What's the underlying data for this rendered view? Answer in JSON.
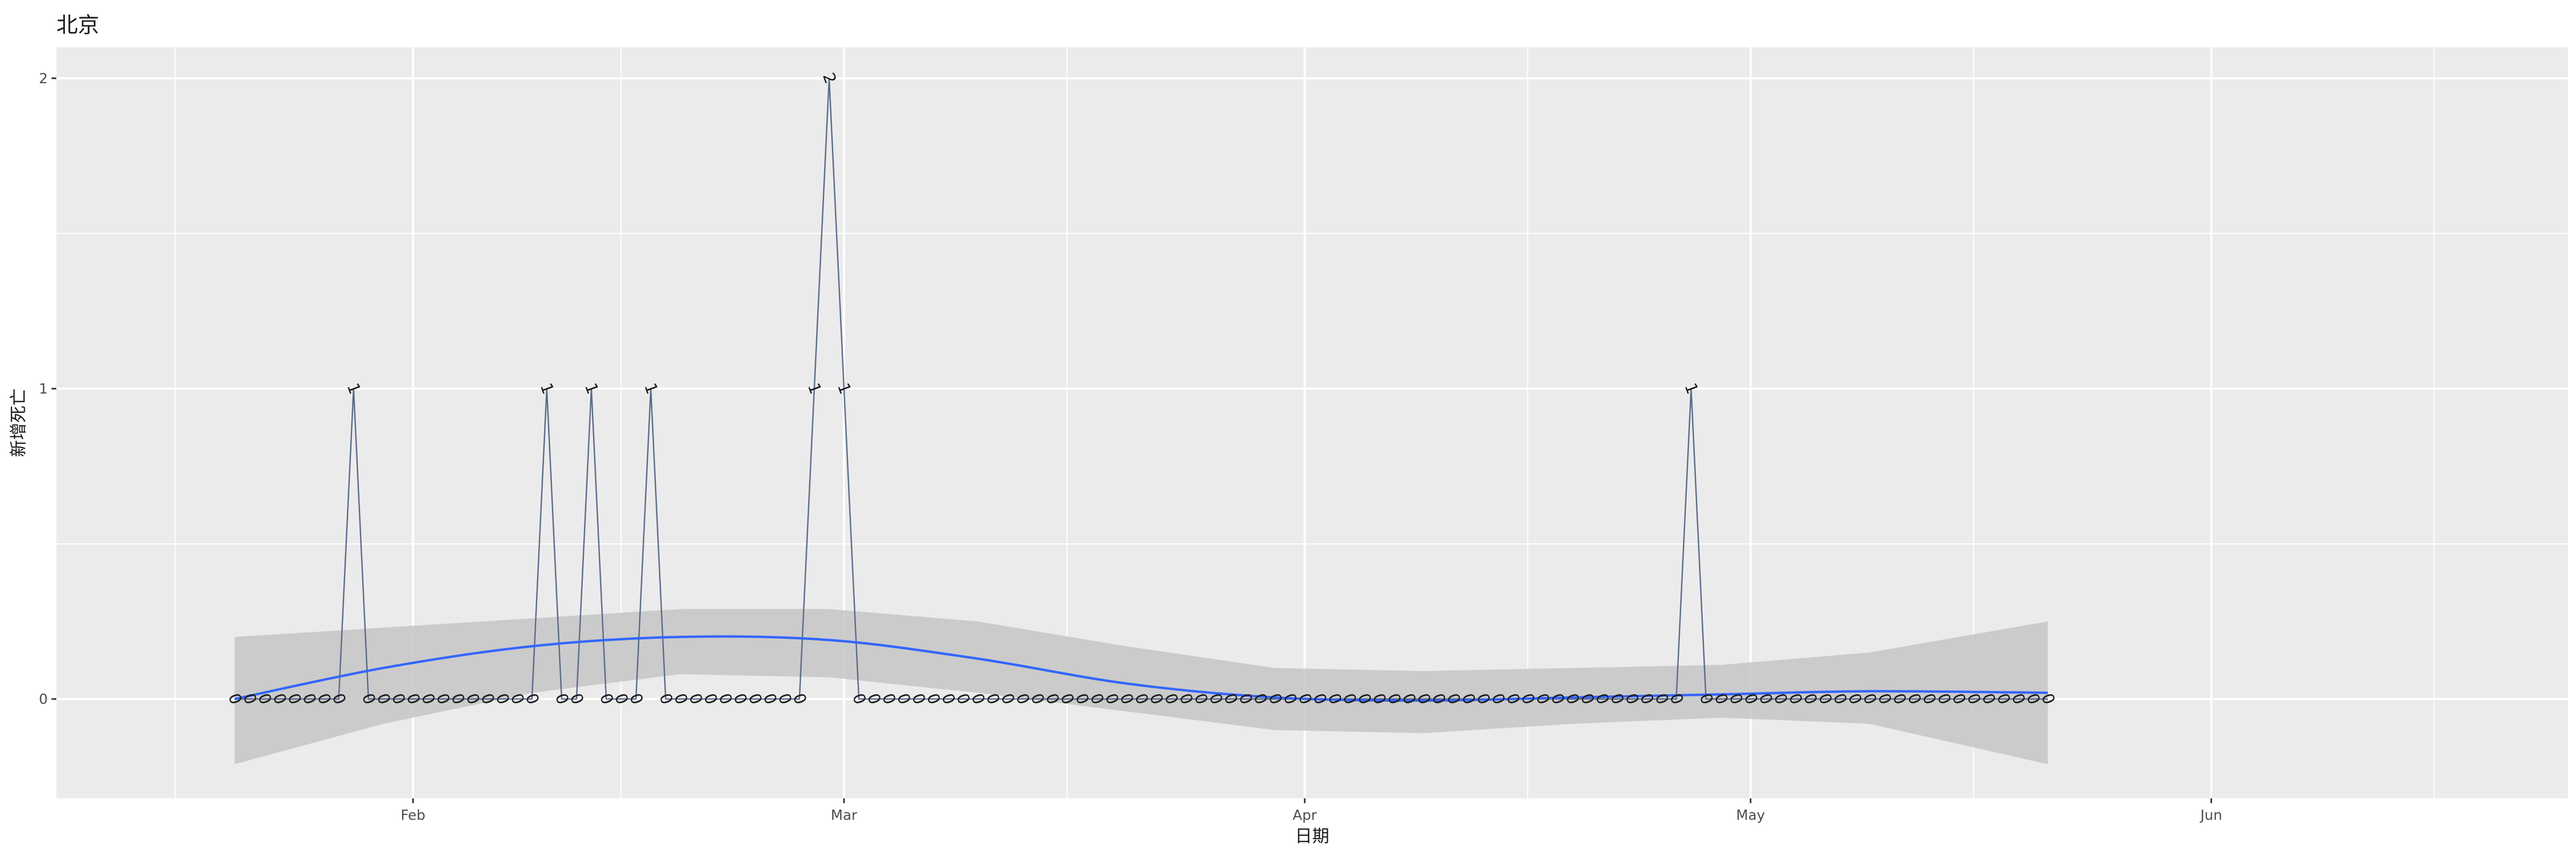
{
  "chart_data": {
    "type": "line",
    "title": "北京",
    "xlabel": "日期",
    "ylabel": "新增死亡",
    "x_range": [
      "2020-01-08",
      "2020-06-25"
    ],
    "ylim": [
      -0.32,
      2.1
    ],
    "x_ticks": [
      {
        "date": "2020-02-01",
        "label": "Feb"
      },
      {
        "date": "2020-03-01",
        "label": "Mar"
      },
      {
        "date": "2020-04-01",
        "label": "Apr"
      },
      {
        "date": "2020-05-01",
        "label": "May"
      },
      {
        "date": "2020-06-01",
        "label": "Jun"
      }
    ],
    "x_minor_ticks": [
      "2020-01-16",
      "2020-02-15",
      "2020-03-16",
      "2020-04-16",
      "2020-05-16",
      "2020-06-16"
    ],
    "y_ticks": [
      0,
      1,
      2
    ],
    "y_minor_ticks": [
      0.5,
      1.5
    ],
    "grid": true,
    "series": [
      {
        "style": "line-with-text-labels",
        "color": "#5a6a8a",
        "dates": [
          "2020-01-20",
          "2020-01-21",
          "2020-01-22",
          "2020-01-23",
          "2020-01-24",
          "2020-01-25",
          "2020-01-26",
          "2020-01-27",
          "2020-01-28",
          "2020-01-29",
          "2020-01-30",
          "2020-01-31",
          "2020-02-01",
          "2020-02-02",
          "2020-02-03",
          "2020-02-04",
          "2020-02-05",
          "2020-02-06",
          "2020-02-07",
          "2020-02-08",
          "2020-02-09",
          "2020-02-10",
          "2020-02-11",
          "2020-02-12",
          "2020-02-13",
          "2020-02-14",
          "2020-02-15",
          "2020-02-16",
          "2020-02-17",
          "2020-02-18",
          "2020-02-19",
          "2020-02-20",
          "2020-02-21",
          "2020-02-22",
          "2020-02-23",
          "2020-02-24",
          "2020-02-25",
          "2020-02-26",
          "2020-02-27",
          "2020-02-28",
          "2020-02-29",
          "2020-03-01",
          "2020-03-02",
          "2020-03-03",
          "2020-03-04",
          "2020-03-05",
          "2020-03-06",
          "2020-03-07",
          "2020-03-08",
          "2020-03-09",
          "2020-03-10",
          "2020-03-11",
          "2020-03-12",
          "2020-03-13",
          "2020-03-14",
          "2020-03-15",
          "2020-03-16",
          "2020-03-17",
          "2020-03-18",
          "2020-03-19",
          "2020-03-20",
          "2020-03-21",
          "2020-03-22",
          "2020-03-23",
          "2020-03-24",
          "2020-03-25",
          "2020-03-26",
          "2020-03-27",
          "2020-03-28",
          "2020-03-29",
          "2020-03-30",
          "2020-03-31",
          "2020-04-01",
          "2020-04-02",
          "2020-04-03",
          "2020-04-04",
          "2020-04-05",
          "2020-04-06",
          "2020-04-07",
          "2020-04-08",
          "2020-04-09",
          "2020-04-10",
          "2020-04-11",
          "2020-04-12",
          "2020-04-13",
          "2020-04-14",
          "2020-04-15",
          "2020-04-16",
          "2020-04-17",
          "2020-04-18",
          "2020-04-19",
          "2020-04-20",
          "2020-04-21",
          "2020-04-22",
          "2020-04-23",
          "2020-04-24",
          "2020-04-25",
          "2020-04-26",
          "2020-04-27",
          "2020-04-28",
          "2020-04-29",
          "2020-04-30",
          "2020-05-01",
          "2020-05-02",
          "2020-05-03",
          "2020-05-04",
          "2020-05-05",
          "2020-05-06",
          "2020-05-07",
          "2020-05-08",
          "2020-05-09",
          "2020-05-10",
          "2020-05-11",
          "2020-05-12",
          "2020-05-13",
          "2020-05-14",
          "2020-05-15",
          "2020-05-16",
          "2020-05-17",
          "2020-05-18",
          "2020-05-19",
          "2020-05-20",
          "2020-05-21"
        ],
        "values": [
          0,
          0,
          0,
          0,
          0,
          0,
          0,
          0,
          1,
          0,
          0,
          0,
          0,
          0,
          0,
          0,
          0,
          0,
          0,
          0,
          0,
          1,
          0,
          0,
          1,
          0,
          0,
          0,
          1,
          0,
          0,
          0,
          0,
          0,
          0,
          0,
          0,
          0,
          0,
          1,
          2,
          1,
          0,
          0,
          0,
          0,
          0,
          0,
          0,
          0,
          0,
          0,
          0,
          0,
          0,
          0,
          0,
          0,
          0,
          0,
          0,
          0,
          0,
          0,
          0,
          0,
          0,
          0,
          0,
          0,
          0,
          0,
          0,
          0,
          0,
          0,
          0,
          0,
          0,
          0,
          0,
          0,
          0,
          0,
          0,
          0,
          0,
          0,
          0,
          0,
          0,
          0,
          0,
          0,
          0,
          0,
          0,
          0,
          1,
          0,
          0,
          0,
          0,
          0,
          0,
          0,
          0,
          0,
          0,
          0,
          0,
          0,
          0,
          0,
          0,
          0,
          0,
          0,
          0,
          0,
          0,
          0,
          0
        ]
      },
      {
        "style": "smooth-with-ribbon",
        "color": "#3366ff",
        "ribbon_color": "#c6c6c6",
        "dates": [
          "2020-01-20",
          "2020-01-30",
          "2020-02-09",
          "2020-02-19",
          "2020-02-29",
          "2020-03-10",
          "2020-03-20",
          "2020-03-30",
          "2020-04-09",
          "2020-04-19",
          "2020-04-29",
          "2020-05-09",
          "2020-05-21"
        ],
        "fit": [
          0.0,
          0.1,
          0.17,
          0.2,
          0.19,
          0.13,
          0.05,
          0.005,
          -0.005,
          0.005,
          0.015,
          0.025,
          0.02
        ],
        "lower": [
          -0.21,
          -0.08,
          0.02,
          0.08,
          0.07,
          0.02,
          -0.04,
          -0.1,
          -0.11,
          -0.08,
          -0.06,
          -0.08,
          -0.21
        ],
        "upper": [
          0.2,
          0.23,
          0.26,
          0.29,
          0.29,
          0.25,
          0.17,
          0.1,
          0.09,
          0.1,
          0.11,
          0.15,
          0.25
        ]
      }
    ]
  }
}
